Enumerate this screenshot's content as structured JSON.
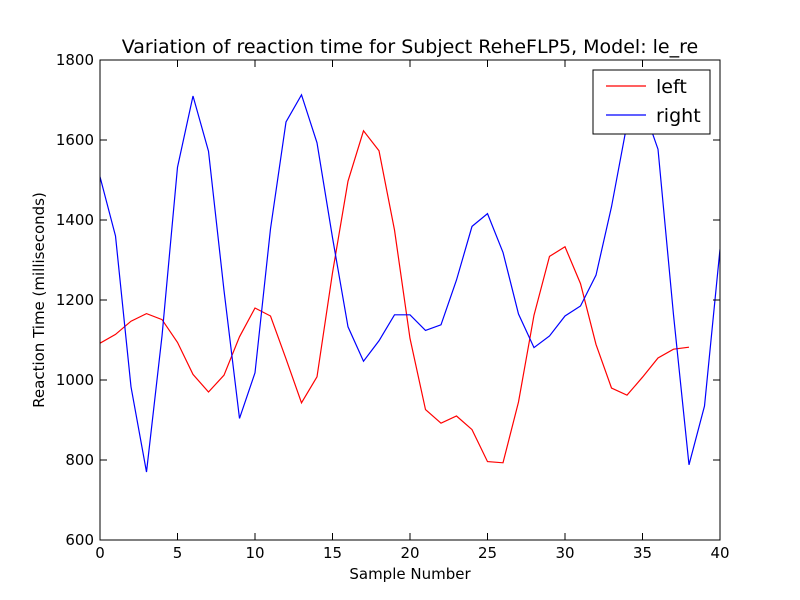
{
  "chart_data": {
    "type": "line",
    "title": "Variation of reaction time for Subject ReheFLP5, Model: le_re",
    "xlabel": "Sample Number",
    "ylabel": "Reaction Time (milliseconds)",
    "xlim": [
      0,
      40
    ],
    "ylim": [
      600,
      1800
    ],
    "xticks": [
      0,
      5,
      10,
      15,
      20,
      25,
      30,
      35,
      40
    ],
    "yticks": [
      600,
      800,
      1000,
      1200,
      1400,
      1600,
      1800
    ],
    "grid": false,
    "legend_position": "top-right",
    "series": [
      {
        "name": "left",
        "color": "#ff0000",
        "x": [
          0,
          1,
          2,
          3,
          4,
          5,
          6,
          7,
          8,
          9,
          10,
          11,
          12,
          13,
          14,
          15,
          16,
          17,
          18,
          19,
          20,
          21,
          22,
          23,
          24,
          25,
          26,
          27,
          28,
          29,
          30,
          31,
          32,
          33,
          34,
          35,
          36,
          37,
          38
        ],
        "values": [
          1092,
          1114,
          1147,
          1166,
          1151,
          1094,
          1014,
          970,
          1012,
          1108,
          1180,
          1160,
          1053,
          943,
          1008,
          1268,
          1497,
          1623,
          1573,
          1375,
          1104,
          926,
          892,
          910,
          876,
          796,
          793,
          945,
          1162,
          1309,
          1333,
          1241,
          1089,
          980,
          962,
          1007,
          1055,
          1077,
          1082
        ]
      },
      {
        "name": "right",
        "color": "#0000ff",
        "x": [
          0,
          1,
          2,
          3,
          4,
          5,
          6,
          7,
          8,
          9,
          10,
          11,
          12,
          13,
          14,
          15,
          16,
          17,
          18,
          19,
          20,
          21,
          22,
          23,
          24,
          25,
          26,
          27,
          28,
          29,
          30,
          31,
          32,
          33,
          34,
          35,
          36,
          37,
          38,
          39,
          40
        ],
        "values": [
          1508,
          1360,
          983,
          770,
          1110,
          1532,
          1710,
          1572,
          1224,
          904,
          1018,
          1378,
          1645,
          1713,
          1593,
          1356,
          1133,
          1047,
          1098,
          1163,
          1163,
          1124,
          1138,
          1250,
          1384,
          1416,
          1319,
          1165,
          1081,
          1110,
          1160,
          1185,
          1262,
          1433,
          1640,
          1688,
          1577,
          1163,
          788,
          935,
          1327
        ]
      }
    ]
  }
}
